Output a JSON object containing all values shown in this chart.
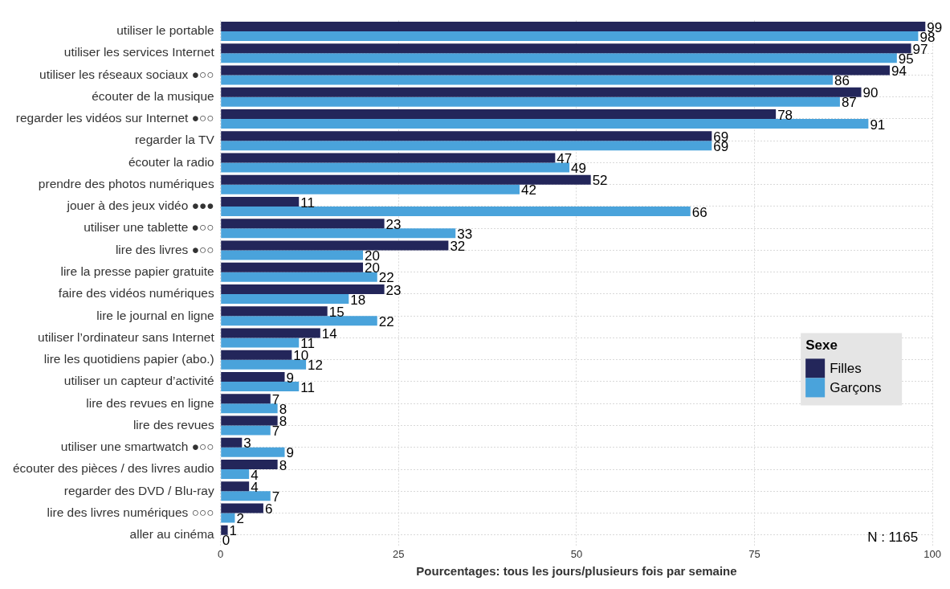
{
  "chart_data": {
    "type": "bar",
    "orientation": "horizontal",
    "categories": [
      "utiliser le portable",
      "utiliser les services Internet",
      "utiliser les réseaux sociaux ●○○",
      "écouter de la musique",
      "regarder les vidéos sur Internet ●○○",
      "regarder la TV",
      "écouter la radio",
      "prendre des photos numériques",
      "jouer à des jeux vidéo ●●●",
      "utiliser une tablette ●○○",
      "lire des livres ●○○",
      "lire la presse papier gratuite",
      "faire des vidéos numériques",
      "lire le journal en ligne",
      "utiliser l’ordinateur sans Internet",
      "lire les quotidiens papier (abo.)",
      "utiliser un capteur d’activité",
      "lire des revues en ligne",
      "lire des revues",
      "utiliser une smartwatch ●○○",
      "écouter des pièces / des livres audio",
      "regarder des DVD / Blu-ray",
      "lire des livres numériques ○○○",
      "aller au cinéma"
    ],
    "series": [
      {
        "name": "Filles",
        "color": "#23265a",
        "values": [
          99,
          97,
          94,
          90,
          78,
          69,
          47,
          52,
          11,
          23,
          32,
          20,
          23,
          15,
          14,
          10,
          9,
          7,
          8,
          3,
          8,
          4,
          6,
          1
        ]
      },
      {
        "name": "Garçons",
        "color": "#4aa3db",
        "values": [
          98,
          95,
          86,
          87,
          91,
          69,
          49,
          42,
          66,
          33,
          20,
          22,
          18,
          22,
          11,
          12,
          11,
          8,
          7,
          9,
          4,
          7,
          2,
          0
        ]
      }
    ],
    "xlabel": "Pourcentages: tous les jours/plusieurs fois par semaine",
    "xlim": [
      0,
      100
    ],
    "xticks": [
      0,
      25,
      50,
      75,
      100
    ],
    "grid": true,
    "legend": "bottom right",
    "legend_title": "Sexe",
    "data_labels": true,
    "annotations": [
      "N : 1165"
    ]
  }
}
